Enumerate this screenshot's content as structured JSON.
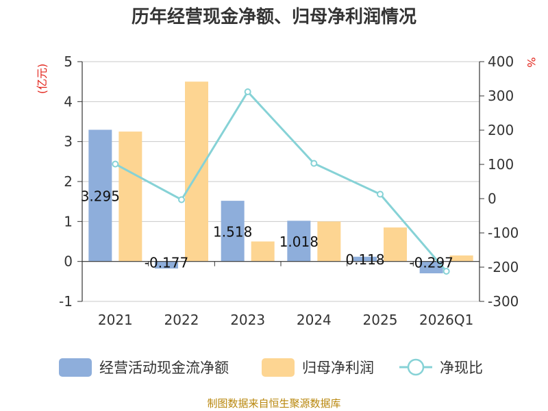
{
  "title": "历年经营现金净额、归母净利润情况",
  "left_unit": "(亿元)",
  "right_unit": "%",
  "source": "制图数据来自恒生聚源数据库",
  "colors": {
    "series_cash": "#8eaedb",
    "series_profit": "#fdd592",
    "series_ratio": "#86d2d6",
    "unit_red": "#e2231a",
    "axis": "#333333",
    "grid": "#c8c8c8",
    "source": "#b8860b"
  },
  "chart_data": {
    "type": "bar",
    "title": "历年经营现金净额、归母净利润情况",
    "categories": [
      "2021",
      "2022",
      "2023",
      "2024",
      "2025",
      "2026Q1"
    ],
    "left_axis": {
      "label": "(亿元)",
      "range": [
        -1,
        5
      ],
      "ticks": [
        -1,
        0,
        1,
        2,
        3,
        4,
        5
      ]
    },
    "right_axis": {
      "label": "%",
      "range": [
        -300,
        400
      ],
      "ticks": [
        -300,
        -200,
        -100,
        0,
        100,
        200,
        300,
        400
      ]
    },
    "grid": true,
    "legend_position": "bottom",
    "series": [
      {
        "name": "经营活动现金流净额",
        "type": "bar",
        "axis": "left",
        "values": [
          3.295,
          -0.177,
          1.518,
          1.018,
          0.118,
          -0.297
        ],
        "labels": [
          "3.295",
          "-0.177",
          "1.518",
          "1.018",
          "0.118",
          "-0.297"
        ]
      },
      {
        "name": "归母净利润",
        "type": "bar",
        "axis": "left",
        "values": [
          3.25,
          4.5,
          0.5,
          1.0,
          0.85,
          0.15
        ]
      },
      {
        "name": "净现比",
        "type": "line",
        "axis": "right",
        "values": [
          101,
          -3,
          312,
          103,
          13,
          -212
        ]
      }
    ]
  }
}
